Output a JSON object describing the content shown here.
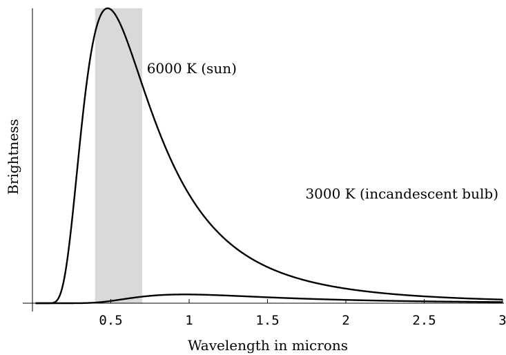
{
  "chart_data": {
    "type": "line",
    "xlabel": "Wavelength in microns",
    "ylabel": "Brightness",
    "xlim": [
      0,
      3
    ],
    "ylim": [
      0,
      1
    ],
    "grid": false,
    "x_ticks": [
      0.5,
      1,
      1.5,
      2,
      2.5,
      3
    ],
    "x_tick_labels": [
      "0.5",
      "1",
      "1.5",
      "2",
      "2.5",
      "3"
    ],
    "shaded_band": {
      "x_start": 0.4,
      "x_end": 0.7,
      "color": "#d9d9d9"
    },
    "series": [
      {
        "name": "6000 K (sun)",
        "temperature_K": 6000,
        "peak_x": 0.48,
        "color": "#000000"
      },
      {
        "name": "3000 K (incandescent bulb)",
        "temperature_K": 3000,
        "peak_x": 0.97,
        "color": "#000000"
      }
    ]
  }
}
